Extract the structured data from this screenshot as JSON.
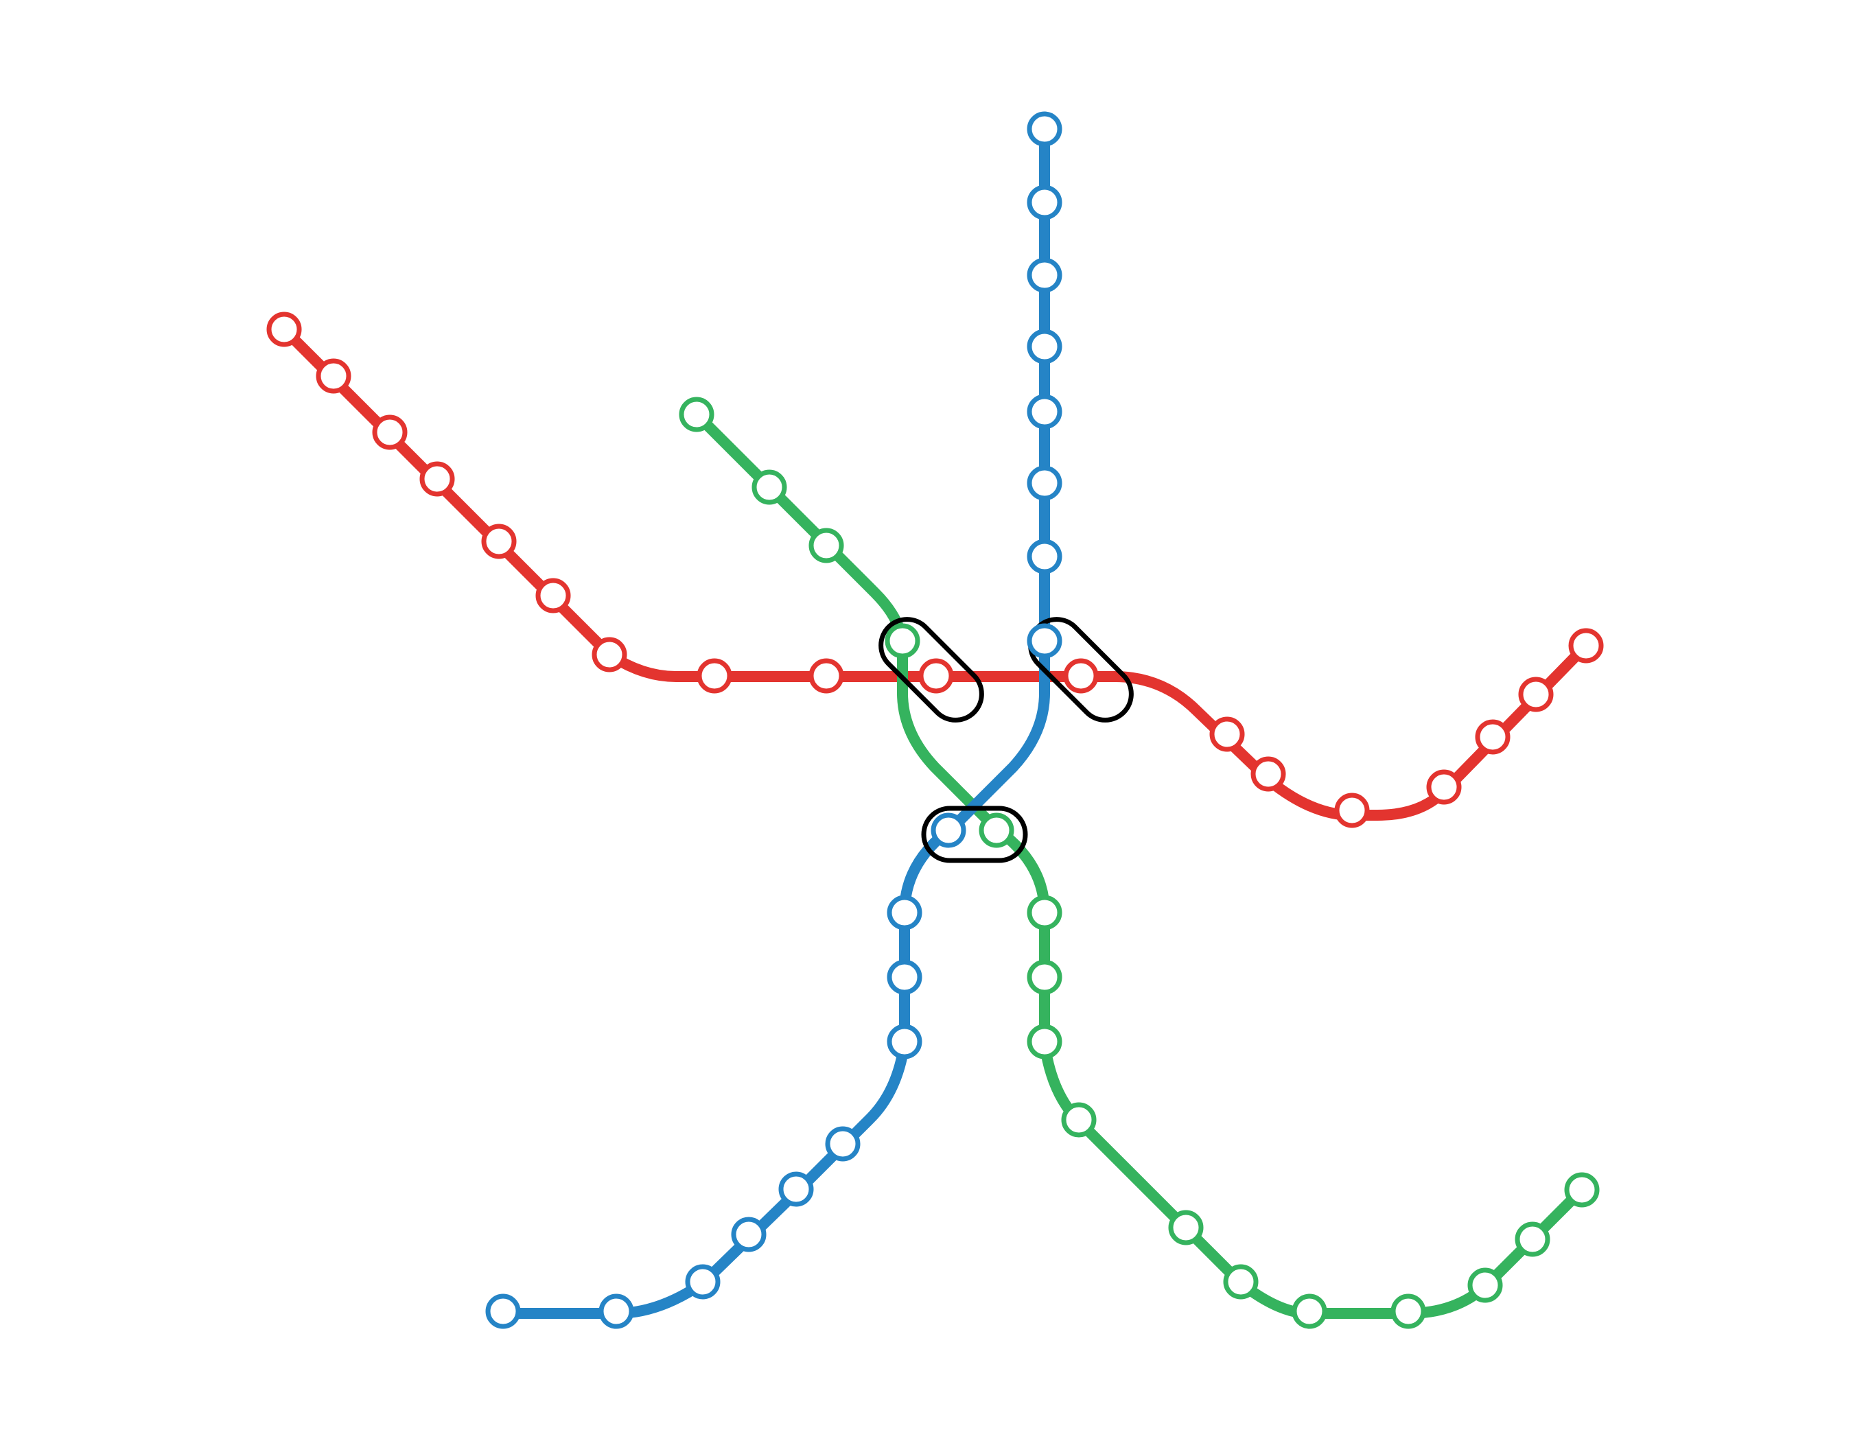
{
  "lines": [
    {
      "id": "red",
      "color": "#e3342f"
    },
    {
      "id": "blue",
      "color": "#2584c6"
    },
    {
      "id": "green",
      "color": "#35b35e"
    }
  ],
  "interchange_color": "#000000",
  "background": "#ffffff"
}
